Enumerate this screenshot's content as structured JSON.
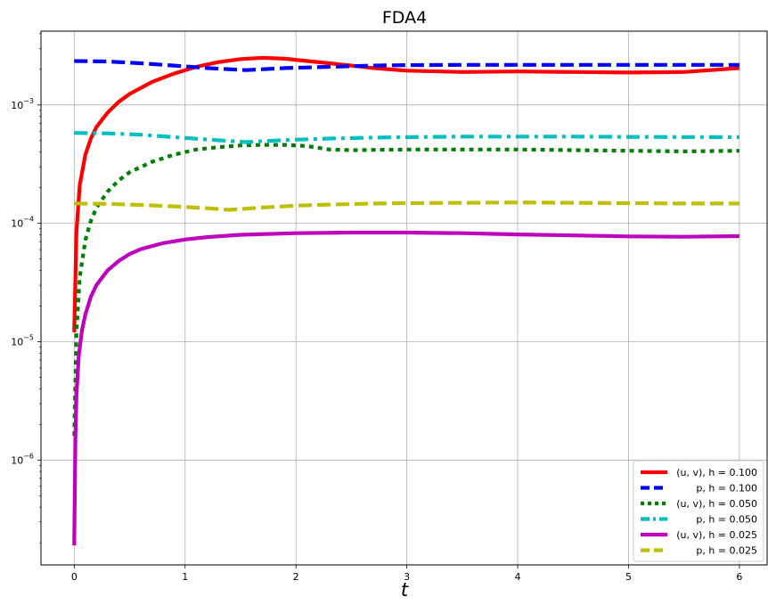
{
  "chart_data": {
    "type": "line",
    "title": "FDA4",
    "xlabel": "t",
    "ylabel": "",
    "yscale": "log",
    "xlim": [
      -0.3,
      6.25
    ],
    "ylim": [
      1.3e-07,
      0.0042
    ],
    "grid": true,
    "legend_position": "bottom-right",
    "x_ticks": [
      0,
      1,
      2,
      3,
      4,
      5,
      6
    ],
    "x_tick_labels": [
      "0",
      "1",
      "2",
      "3",
      "4",
      "5",
      "6"
    ],
    "y_ticks": [
      1e-06,
      1e-05,
      0.0001,
      0.001
    ],
    "y_tick_labels": [
      {
        "base": "10",
        "exp": "−6"
      },
      {
        "base": "10",
        "exp": "−5"
      },
      {
        "base": "10",
        "exp": "−4"
      },
      {
        "base": "10",
        "exp": "−3"
      }
    ],
    "series": [
      {
        "name": "(u, v), h = 0.100",
        "color": "#ff0000",
        "style": "solid",
        "x": [
          0,
          0.02,
          0.05,
          0.1,
          0.15,
          0.2,
          0.3,
          0.4,
          0.5,
          0.7,
          0.9,
          1.1,
          1.3,
          1.5,
          1.7,
          1.9,
          2.1,
          2.3,
          2.5,
          2.7,
          3.0,
          3.5,
          4.0,
          4.5,
          5.0,
          5.5,
          6.0
        ],
        "y": [
          1.2e-05,
          8.5e-05,
          0.00021,
          0.00038,
          0.00052,
          0.00065,
          0.00086,
          0.00106,
          0.00124,
          0.00156,
          0.00184,
          0.0021,
          0.0023,
          0.00244,
          0.0025,
          0.00246,
          0.00235,
          0.00225,
          0.00215,
          0.00205,
          0.00195,
          0.0019,
          0.00192,
          0.0019,
          0.00188,
          0.0019,
          0.00205
        ]
      },
      {
        "name": "p, h = 0.100",
        "color": "#0000ff",
        "style": "dashed",
        "x": [
          0,
          0.3,
          0.6,
          0.9,
          1.2,
          1.55,
          1.9,
          2.3,
          2.7,
          3.0,
          3.5,
          4.0,
          4.5,
          5.0,
          5.5,
          6.0
        ],
        "y": [
          0.00235,
          0.00233,
          0.00225,
          0.00215,
          0.00205,
          0.00197,
          0.00205,
          0.0021,
          0.00215,
          0.00217,
          0.00218,
          0.00218,
          0.00218,
          0.00218,
          0.00218,
          0.00218
        ]
      },
      {
        "name": "(u, v), h = 0.050",
        "color": "#008000",
        "style": "dotted",
        "x": [
          0,
          0.02,
          0.05,
          0.1,
          0.15,
          0.2,
          0.3,
          0.4,
          0.5,
          0.7,
          0.9,
          1.1,
          1.3,
          1.5,
          1.7,
          1.9,
          2.1,
          2.3,
          2.5,
          3.0,
          3.5,
          4.0,
          4.5,
          5.0,
          5.5,
          6.0
        ],
        "y": [
          1.6e-06,
          1.2e-05,
          3.5e-05,
          7.2e-05,
          0.000105,
          0.000135,
          0.000185,
          0.00023,
          0.00027,
          0.00033,
          0.00038,
          0.00042,
          0.00044,
          0.000455,
          0.00046,
          0.00046,
          0.00045,
          0.00042,
          0.000415,
          0.00042,
          0.00042,
          0.00042,
          0.000415,
          0.00041,
          0.000405,
          0.00041
        ]
      },
      {
        "name": "p, h = 0.050",
        "color": "#00bfbf",
        "style": "dashdot",
        "x": [
          0,
          0.3,
          0.6,
          0.9,
          1.2,
          1.55,
          1.9,
          2.3,
          2.7,
          3.0,
          3.5,
          4.0,
          4.5,
          5.0,
          5.5,
          6.0
        ],
        "y": [
          0.00058,
          0.000575,
          0.00056,
          0.000535,
          0.00051,
          0.000485,
          0.000505,
          0.00052,
          0.00053,
          0.000535,
          0.00054,
          0.00054,
          0.00054,
          0.000538,
          0.000536,
          0.000535
        ]
      },
      {
        "name": "(u, v), h = 0.025",
        "color": "#bf00bf",
        "style": "solid",
        "x": [
          0,
          0.01,
          0.02,
          0.04,
          0.07,
          0.1,
          0.15,
          0.2,
          0.3,
          0.4,
          0.5,
          0.6,
          0.8,
          1.0,
          1.2,
          1.5,
          2.0,
          2.5,
          3.0,
          3.5,
          4.0,
          4.5,
          5.0,
          5.5,
          6.0
        ],
        "y": [
          1.9e-07,
          1.5e-06,
          3.5e-06,
          7.5e-06,
          1.25e-05,
          1.7e-05,
          2.4e-05,
          3e-05,
          4e-05,
          4.8e-05,
          5.5e-05,
          6.05e-05,
          6.8e-05,
          7.3e-05,
          7.65e-05,
          8e-05,
          8.25e-05,
          8.35e-05,
          8.35e-05,
          8.25e-05,
          8.05e-05,
          7.9e-05,
          7.75e-05,
          7.7e-05,
          7.8e-05
        ]
      },
      {
        "name": "p, h = 0.025",
        "color": "#bfbf00",
        "style": "dashed",
        "x": [
          0,
          0.3,
          0.6,
          0.9,
          1.2,
          1.4,
          1.7,
          2.0,
          2.3,
          2.7,
          3.0,
          3.5,
          4.0,
          4.5,
          5.0,
          5.5,
          6.0
        ],
        "y": [
          0.000147,
          0.000146,
          0.000143,
          0.000139,
          0.000134,
          0.00013,
          0.000136,
          0.000141,
          0.000144,
          0.000147,
          0.000148,
          0.000149,
          0.00015,
          0.000149,
          0.000148,
          0.000147,
          0.000147
        ]
      }
    ]
  }
}
